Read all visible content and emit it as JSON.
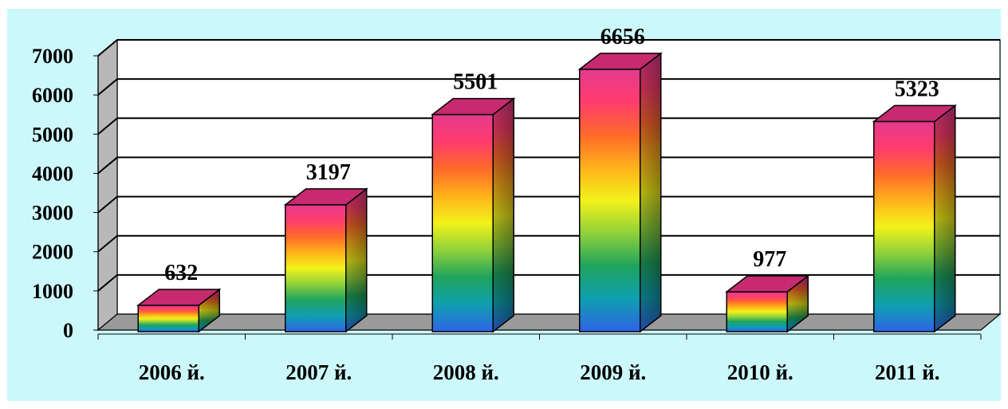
{
  "chart_data": {
    "type": "bar",
    "style": "3d-column",
    "categories": [
      "2006 й.",
      "2007 й.",
      "2008 й.",
      "2009 й.",
      "2010 й.",
      "2011 й."
    ],
    "values": [
      632,
      3197,
      5501,
      6656,
      977,
      5323
    ],
    "data_labels": [
      "632",
      "3197",
      "5501",
      "6656",
      "977",
      "5323"
    ],
    "y_ticks": [
      "0",
      "1000",
      "2000",
      "3000",
      "4000",
      "5000",
      "6000",
      "7000"
    ],
    "ylim": [
      0,
      7000
    ],
    "grid": true,
    "legend": "none",
    "colors": {
      "background": "#ccf8fb",
      "plot_back": "#ffffff",
      "wall_side": "#b8b8b8",
      "floor": "#9a9a9a",
      "grid": "#000000",
      "bar_top": "#c72a6f",
      "bar_gradient": [
        "#2f63e6",
        "#0f9fb0",
        "#1fa35d",
        "#8fd13a",
        "#f3f21a",
        "#ffb21a",
        "#ff6a2a",
        "#ff3c6e",
        "#e43a8f"
      ]
    }
  }
}
